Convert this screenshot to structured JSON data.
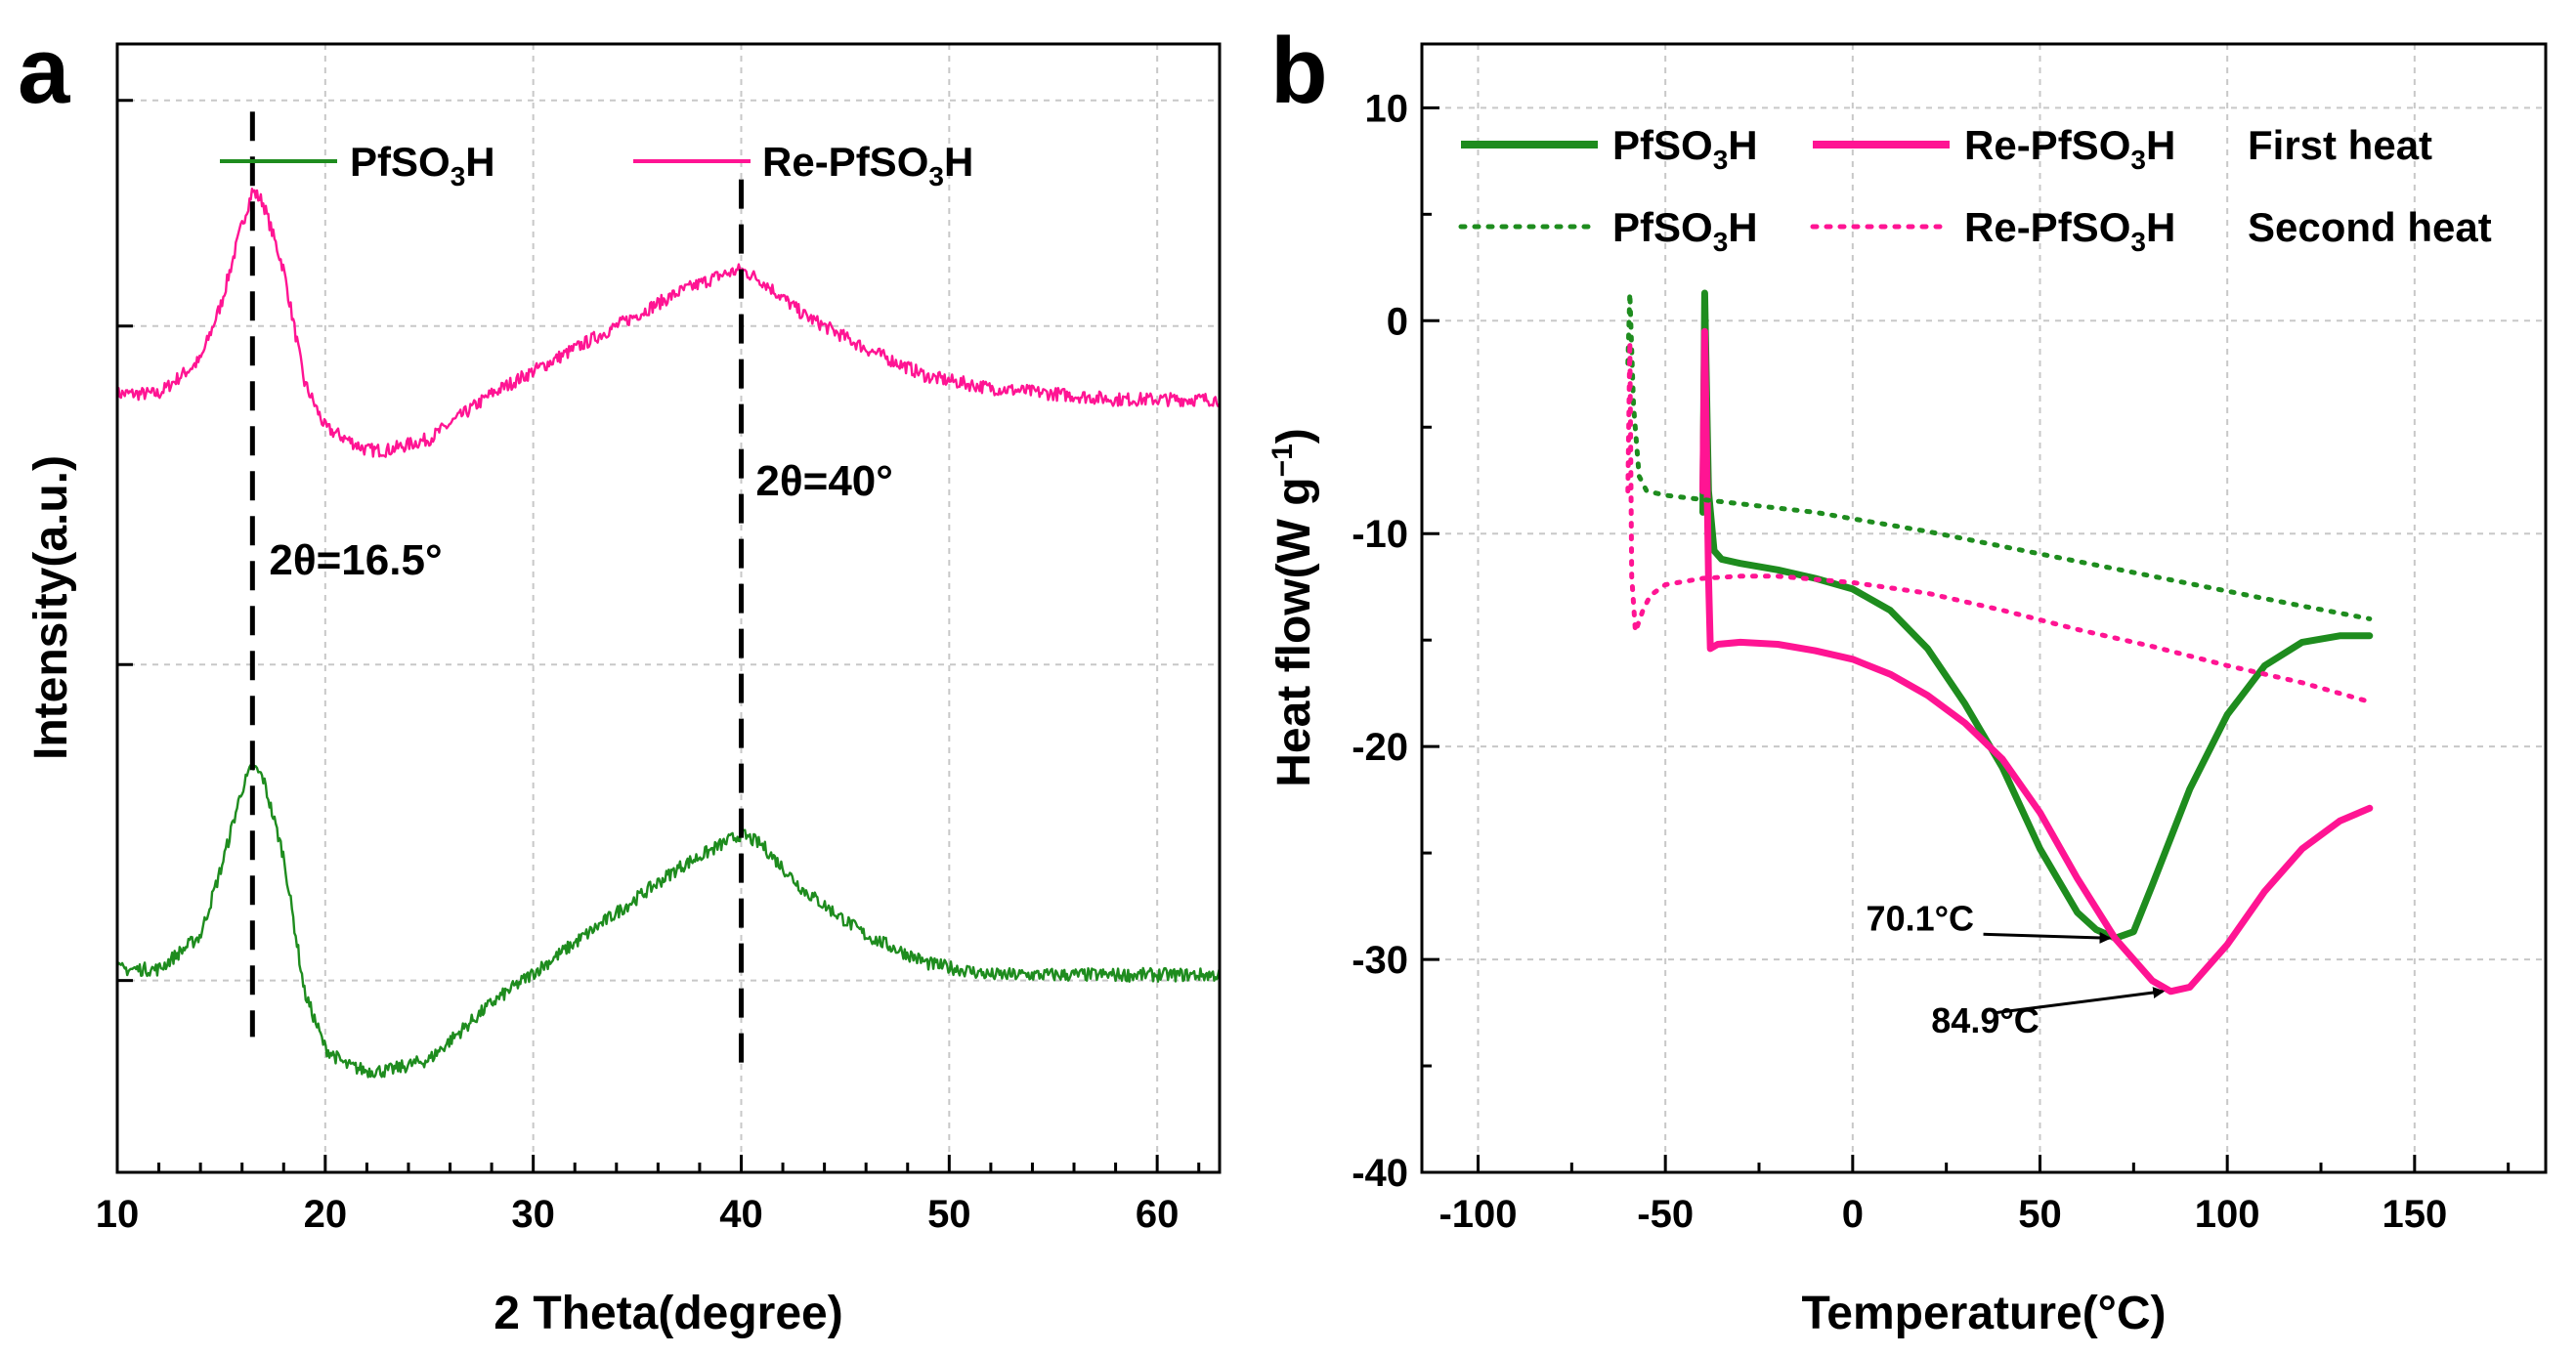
{
  "colors": {
    "green": "#1e8c1e",
    "pink": "#ff1493",
    "black": "#000000"
  },
  "chart_data": [
    {
      "type": "line",
      "panel": "a",
      "title": "",
      "xlabel": "2 Theta(degree)",
      "ylabel": "Intensity(a.u.)",
      "xlim": [
        10,
        63
      ],
      "ylim": [
        0,
        10
      ],
      "xticks": [
        10,
        20,
        30,
        40,
        50,
        60
      ],
      "xtick_labels": [
        "10",
        "20",
        "30",
        "40",
        "50",
        "60"
      ],
      "yticks_unlabeled": [
        1.7,
        4.5,
        7.5
      ],
      "grid": true,
      "legend": {
        "placement": "top",
        "entries": [
          {
            "label": "PfSO",
            "sub": "3",
            "tail": "H",
            "color": "#1e8c1e",
            "style": "solid"
          },
          {
            "label": "Re-PfSO",
            "sub": "3",
            "tail": "H",
            "color": "#ff1493",
            "style": "solid"
          }
        ]
      },
      "series": [
        {
          "name": "Re-PfSO3H",
          "color": "#ff1493",
          "style": "solid",
          "x": [
            10,
            12,
            14,
            15,
            16,
            16.5,
            17,
            18,
            19,
            20,
            21,
            22,
            23,
            25,
            28,
            31,
            34,
            37,
            39,
            40,
            41,
            43,
            46,
            49,
            52,
            55,
            58,
            61,
            63
          ],
          "y": [
            6.9,
            6.9,
            7.2,
            7.7,
            8.4,
            8.7,
            8.6,
            8.0,
            7.0,
            6.6,
            6.5,
            6.4,
            6.4,
            6.5,
            6.9,
            7.2,
            7.5,
            7.8,
            7.95,
            8.0,
            7.9,
            7.6,
            7.3,
            7.05,
            6.95,
            6.9,
            6.85,
            6.85,
            6.85
          ]
        },
        {
          "name": "PfSO3H",
          "color": "#1e8c1e",
          "style": "solid",
          "x": [
            10,
            12,
            14,
            15,
            16,
            16.5,
            17,
            18,
            19,
            20,
            21,
            22,
            23,
            25,
            28,
            31,
            34,
            37,
            39,
            40,
            41,
            43,
            46,
            49,
            52,
            55,
            58,
            61,
            63
          ],
          "y": [
            1.8,
            1.8,
            2.1,
            2.7,
            3.4,
            3.6,
            3.5,
            2.8,
            1.6,
            1.1,
            0.95,
            0.9,
            0.9,
            1.0,
            1.5,
            1.9,
            2.3,
            2.7,
            2.9,
            3.0,
            2.9,
            2.5,
            2.1,
            1.85,
            1.75,
            1.75,
            1.75,
            1.75,
            1.75
          ]
        }
      ],
      "annotations": [
        {
          "text": "2θ=16.5°",
          "x": 16.5
        },
        {
          "text": "2θ=40°",
          "x": 40
        }
      ]
    },
    {
      "type": "line",
      "panel": "b",
      "title": "",
      "xlabel": "Temperature(°C)",
      "ylabel_main": "Heat flow(W g",
      "ylabel_sup": "−1",
      "ylabel_tail": ")",
      "xlim": [
        -115,
        185
      ],
      "ylim": [
        -40,
        13
      ],
      "xticks": [
        -100,
        -50,
        0,
        50,
        100,
        150
      ],
      "xtick_labels": [
        "-100",
        "-50",
        "0",
        "50",
        "100",
        "150"
      ],
      "yticks": [
        -40,
        -30,
        -20,
        -10,
        0,
        10
      ],
      "ytick_labels": [
        "-40",
        "-30",
        "-20",
        "-10",
        "0",
        "10"
      ],
      "grid": true,
      "legend": {
        "placement": "top",
        "entries": [
          {
            "label": "PfSO",
            "sub": "3",
            "tail": "H",
            "color": "#1e8c1e",
            "style": "solid"
          },
          {
            "label": "Re-PfSO",
            "sub": "3",
            "tail": "H",
            "color": "#ff1493",
            "style": "solid"
          },
          {
            "label": "PfSO",
            "sub": "3",
            "tail": "H",
            "color": "#1e8c1e",
            "style": "dotted"
          },
          {
            "label": "Re-PfSO",
            "sub": "3",
            "tail": "H",
            "color": "#ff1493",
            "style": "dotted"
          }
        ],
        "row_labels": [
          "First heat",
          "Second heat"
        ]
      },
      "series": [
        {
          "name": "PfSO3H First heat",
          "color": "#1e8c1e",
          "style": "solid",
          "x": [
            -40,
            -39.5,
            -38.5,
            -37,
            -35,
            -30,
            -20,
            -10,
            0,
            10,
            20,
            30,
            40,
            50,
            60,
            65,
            70.1,
            75,
            80,
            90,
            100,
            110,
            120,
            130,
            138
          ],
          "y": [
            -9,
            1.3,
            -8,
            -10.8,
            -11.2,
            -11.4,
            -11.7,
            -12.1,
            -12.6,
            -13.6,
            -15.4,
            -18.0,
            -21.0,
            -24.8,
            -27.8,
            -28.6,
            -29.0,
            -28.7,
            -26.5,
            -22.0,
            -18.5,
            -16.2,
            -15.1,
            -14.8,
            -14.8
          ]
        },
        {
          "name": "Re-PfSO3H First heat",
          "color": "#ff1493",
          "style": "solid",
          "x": [
            -40,
            -39.5,
            -38.5,
            -38,
            -36,
            -30,
            -20,
            -10,
            0,
            10,
            20,
            30,
            40,
            50,
            60,
            70,
            80,
            84.9,
            90,
            100,
            110,
            120,
            130,
            138
          ],
          "y": [
            -8,
            -0.5,
            -12,
            -15.4,
            -15.2,
            -15.1,
            -15.2,
            -15.5,
            -15.9,
            -16.6,
            -17.6,
            -18.9,
            -20.6,
            -23.1,
            -26.2,
            -29.0,
            -31.0,
            -31.5,
            -31.3,
            -29.3,
            -26.8,
            -24.8,
            -23.5,
            -22.9
          ]
        },
        {
          "name": "PfSO3H Second heat",
          "color": "#1e8c1e",
          "style": "dotted",
          "x": [
            -60,
            -59.5,
            -58.5,
            -57,
            -55,
            -50,
            -40,
            -30,
            -20,
            -10,
            0,
            20,
            40,
            60,
            80,
            100,
            120,
            138
          ],
          "y": [
            -2,
            1.3,
            -4,
            -7.3,
            -8.0,
            -8.2,
            -8.4,
            -8.6,
            -8.8,
            -9.0,
            -9.3,
            -9.9,
            -10.6,
            -11.3,
            -12.0,
            -12.7,
            -13.4,
            -14.0
          ]
        },
        {
          "name": "Re-PfSO3H Second heat",
          "color": "#ff1493",
          "style": "dotted",
          "x": [
            -60,
            -59.5,
            -59,
            -58,
            -56,
            -54,
            -50,
            -40,
            -30,
            -20,
            0,
            20,
            40,
            60,
            80,
            100,
            120,
            138
          ],
          "y": [
            -8,
            -1.0,
            -12,
            -14.6,
            -13.6,
            -12.9,
            -12.4,
            -12.1,
            -12.0,
            -12.0,
            -12.3,
            -12.8,
            -13.6,
            -14.5,
            -15.3,
            -16.2,
            -17.0,
            -17.9
          ]
        }
      ],
      "annotations": [
        {
          "text": "70.1°C",
          "x": 70.1,
          "y": -29.0
        },
        {
          "text": "84.9°C",
          "x": 84.9,
          "y": -31.5
        }
      ]
    }
  ]
}
